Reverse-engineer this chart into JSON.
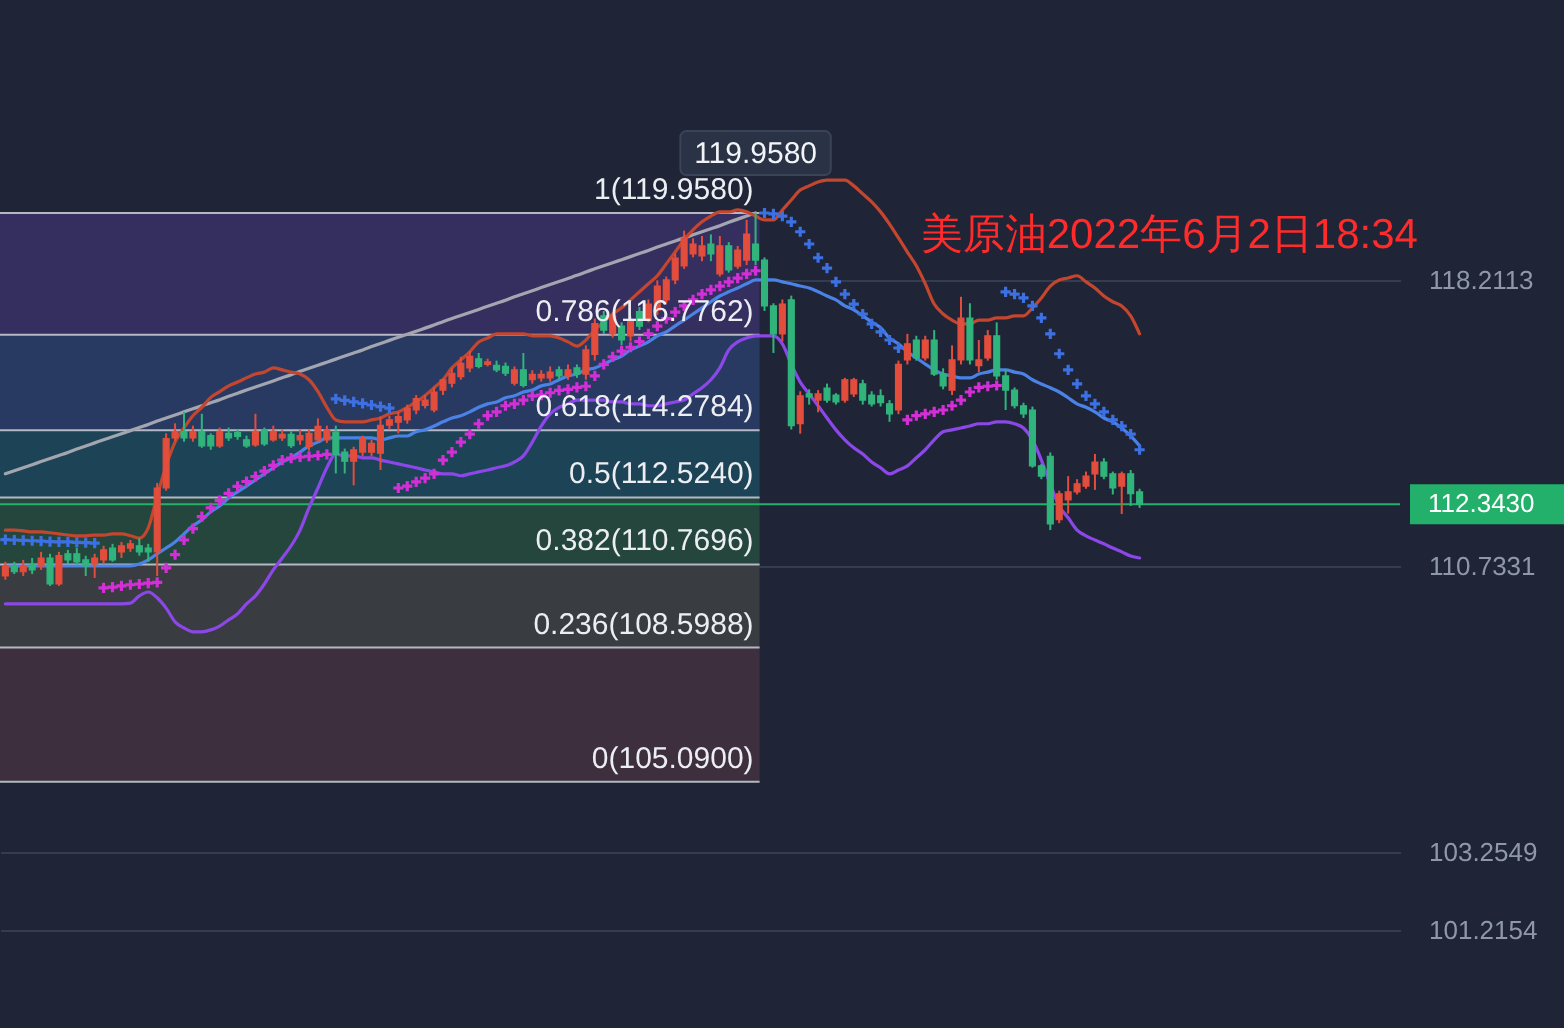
{
  "chart_data": {
    "type": "candlestick",
    "title": "美原油2022年6月2日18:34",
    "categories": [
      null,
      null,
      null,
      null,
      null,
      null,
      null,
      null,
      null,
      null,
      null,
      null,
      null,
      null,
      null,
      null,
      null,
      null,
      null,
      null,
      null,
      null,
      null,
      null,
      null,
      null,
      null,
      null,
      null,
      null,
      null,
      null,
      null,
      null,
      null,
      null,
      null,
      null,
      null,
      null,
      null,
      null,
      null,
      null,
      null,
      null,
      null,
      null,
      null,
      null,
      null,
      null,
      null,
      null,
      null,
      null,
      null,
      null,
      null,
      null,
      null,
      null,
      null,
      null,
      null,
      null,
      null,
      null,
      null,
      null,
      null,
      null,
      null,
      null,
      null,
      null,
      null,
      null,
      null,
      null,
      null,
      null,
      null,
      null,
      null,
      null,
      null,
      null,
      null,
      null,
      null,
      null,
      null,
      null,
      null,
      null,
      null,
      null,
      null,
      null,
      null,
      null,
      null,
      null,
      null,
      null,
      null,
      null,
      null,
      null,
      null,
      null,
      null,
      null,
      null,
      null,
      null,
      null,
      null,
      null,
      null,
      null,
      null,
      null,
      null,
      null,
      null,
      null
    ],
    "ylim": [
      98.65,
      125.53
    ],
    "yticks": [
      118.2113,
      110.7331,
      103.2549,
      101.2154
    ],
    "grid": "y",
    "tick_labels": "y",
    "series": [
      {
        "type": "candlestick",
        "color": "#e34d3c",
        "ohlc": [
          [
            110.47,
            110.84,
            110.37,
            110.73
          ],
          null,
          [
            110.58,
            110.89,
            110.47,
            110.73
          ],
          null,
          [
            110.73,
            111.1,
            110.63,
            110.94
          ],
          null,
          [
            110.26,
            111.1,
            110.21,
            111.0
          ],
          null,
          null,
          null,
          [
            110.78,
            111.05,
            110.42,
            110.94
          ],
          [
            110.89,
            111.26,
            110.78,
            111.15
          ],
          null,
          [
            111.1,
            111.36,
            110.94,
            111.26
          ],
          [
            111.2,
            111.41,
            111.1,
            111.31
          ],
          null,
          null,
          [
            111.1,
            112.9,
            110.47,
            112.77
          ],
          [
            112.77,
            114.2,
            112.7,
            114.06
          ],
          [
            114.08,
            114.46,
            114.0,
            114.25
          ],
          null,
          [
            114.08,
            114.4,
            113.98,
            114.25
          ],
          null,
          null,
          [
            113.87,
            114.35,
            113.82,
            114.25
          ],
          null,
          null,
          null,
          [
            113.9,
            114.71,
            113.85,
            114.25
          ],
          null,
          [
            114.03,
            114.4,
            113.98,
            114.25
          ],
          [
            114.08,
            114.3,
            114.0,
            114.17
          ],
          null,
          [
            114.03,
            114.3,
            113.9,
            114.14
          ],
          [
            113.85,
            114.3,
            113.75,
            114.2
          ],
          [
            114.03,
            114.59,
            113.98,
            114.38
          ],
          [
            114.03,
            114.4,
            113.95,
            114.29
          ],
          null,
          null,
          [
            113.47,
            113.85,
            112.84,
            113.77
          ],
          [
            113.71,
            114.14,
            113.6,
            114.06
          ],
          [
            113.71,
            114.03,
            113.6,
            113.94
          ],
          [
            113.68,
            114.64,
            113.24,
            114.41
          ],
          [
            114.41,
            114.66,
            114.3,
            114.55
          ],
          [
            114.49,
            114.76,
            114.2,
            114.64
          ],
          [
            114.55,
            114.95,
            114.45,
            114.85
          ],
          [
            114.81,
            115.2,
            114.7,
            115.11
          ],
          [
            114.93,
            115.2,
            114.85,
            115.07
          ],
          [
            114.81,
            115.4,
            114.75,
            115.28
          ],
          [
            115.33,
            115.63,
            115.2,
            115.6
          ],
          [
            115.51,
            115.9,
            115.4,
            115.77
          ],
          [
            115.68,
            116.2,
            115.6,
            116.03
          ],
          [
            115.91,
            116.35,
            115.8,
            116.21
          ],
          null,
          [
            116.0,
            116.15,
            115.95,
            116.07
          ],
          null,
          null,
          [
            115.51,
            115.95,
            115.45,
            115.86
          ],
          null,
          [
            115.6,
            115.85,
            115.5,
            115.74
          ],
          [
            115.65,
            115.85,
            115.55,
            115.74
          ],
          [
            115.65,
            115.95,
            115.55,
            115.8
          ],
          null,
          [
            115.7,
            116.0,
            115.6,
            115.86
          ],
          null,
          [
            115.75,
            116.5,
            115.6,
            116.38
          ],
          [
            116.26,
            117.2,
            116.1,
            117.07
          ],
          null,
          [
            116.8,
            117.35,
            116.7,
            117.27
          ],
          null,
          [
            116.75,
            117.25,
            116.6,
            117.16
          ],
          null,
          [
            117.16,
            117.7,
            117.1,
            117.58
          ],
          [
            117.42,
            118.2,
            117.3,
            118.05
          ],
          [
            117.69,
            118.3,
            117.6,
            118.21
          ],
          [
            118.21,
            118.9,
            118.1,
            118.78
          ],
          [
            118.58,
            119.5,
            118.5,
            119.31
          ],
          [
            118.89,
            119.3,
            118.8,
            119.15
          ],
          [
            118.84,
            119.36,
            118.7,
            119.1
          ],
          null,
          [
            118.37,
            119.36,
            118.3,
            119.1
          ],
          null,
          [
            118.57,
            119.1,
            118.5,
            118.99
          ],
          [
            118.73,
            119.78,
            118.6,
            119.41
          ],
          null,
          null,
          null,
          [
            116.8,
            117.7,
            116.6,
            117.58
          ],
          null,
          [
            114.45,
            115.3,
            114.19,
            115.18
          ],
          null,
          [
            115.07,
            115.33,
            114.75,
            115.23
          ],
          null,
          null,
          [
            115.07,
            115.65,
            115.0,
            115.6
          ],
          [
            115.23,
            115.65,
            115.15,
            115.6
          ],
          null,
          null,
          null,
          null,
          [
            114.81,
            116.1,
            114.7,
            116.0
          ],
          [
            116.12,
            116.8,
            116.0,
            116.54
          ],
          null,
          [
            116.17,
            116.75,
            116.1,
            116.64
          ],
          null,
          null,
          [
            115.33,
            116.5,
            115.2,
            116.12
          ],
          [
            116.12,
            117.77,
            116.0,
            117.21
          ],
          null,
          [
            115.97,
            116.64,
            115.8,
            116.12
          ],
          [
            116.17,
            116.9,
            116.1,
            116.75
          ],
          null,
          null,
          null,
          null,
          null,
          null,
          null,
          [
            111.94,
            112.7,
            111.85,
            112.62
          ],
          [
            112.46,
            113.08,
            112.1,
            112.67
          ],
          [
            112.67,
            113.0,
            112.6,
            112.88
          ],
          [
            112.82,
            113.2,
            112.75,
            113.08
          ],
          [
            113.14,
            113.66,
            112.72,
            113.45
          ],
          null,
          null,
          [
            112.82,
            113.2,
            112.09,
            113.14
          ],
          null,
          null
        ]
      },
      {
        "type": "candlestick",
        "color": "#30b47c",
        "ohlc": [
          null,
          [
            110.73,
            110.84,
            110.52,
            110.58
          ],
          null,
          [
            110.78,
            110.94,
            110.52,
            110.63
          ],
          null,
          [
            110.94,
            111.05,
            110.21,
            110.26
          ],
          null,
          [
            111.05,
            111.15,
            110.78,
            110.89
          ],
          [
            111.05,
            111.2,
            110.73,
            110.84
          ],
          [
            110.89,
            111.0,
            110.47,
            110.73
          ],
          null,
          null,
          [
            111.2,
            111.31,
            110.84,
            110.89
          ],
          null,
          null,
          [
            111.26,
            111.46,
            111.0,
            111.1
          ],
          [
            111.2,
            111.31,
            110.84,
            111.1
          ],
          null,
          null,
          null,
          [
            114.25,
            114.76,
            113.98,
            114.08
          ],
          null,
          [
            114.25,
            114.71,
            113.82,
            113.87
          ],
          [
            114.14,
            114.2,
            113.77,
            113.87
          ],
          null,
          [
            114.2,
            114.35,
            114.0,
            114.08
          ],
          [
            114.22,
            114.3,
            114.03,
            114.12
          ],
          [
            114.03,
            114.14,
            113.82,
            113.87
          ],
          null,
          [
            114.29,
            114.35,
            113.87,
            113.92
          ],
          null,
          null,
          [
            114.17,
            114.25,
            113.82,
            113.88
          ],
          null,
          null,
          null,
          null,
          [
            114.23,
            114.4,
            113.15,
            113.65
          ],
          [
            113.71,
            113.8,
            113.15,
            113.47
          ],
          null,
          null,
          null,
          null,
          null,
          null,
          null,
          null,
          null,
          null,
          null,
          null,
          null,
          null,
          [
            116.15,
            116.3,
            115.9,
            115.95
          ],
          null,
          [
            115.98,
            116.1,
            115.8,
            115.86
          ],
          [
            115.95,
            116.05,
            115.7,
            115.77
          ],
          null,
          [
            115.86,
            116.3,
            115.4,
            115.45
          ],
          null,
          null,
          null,
          [
            115.86,
            115.95,
            115.6,
            115.7
          ],
          null,
          [
            115.91,
            116.0,
            115.65,
            115.75
          ],
          null,
          null,
          [
            117.27,
            117.4,
            116.8,
            116.9
          ],
          null,
          [
            117.0,
            117.1,
            116.5,
            116.64
          ],
          null,
          [
            117.38,
            117.5,
            116.9,
            117.0
          ],
          null,
          null,
          null,
          null,
          null,
          null,
          null,
          [
            119.15,
            119.4,
            118.7,
            118.89
          ],
          null,
          [
            119.1,
            119.2,
            118.4,
            118.47
          ],
          null,
          null,
          [
            119.15,
            119.958,
            118.6,
            118.73
          ],
          [
            118.73,
            118.8,
            117.4,
            117.53
          ],
          [
            117.53,
            117.6,
            116.3,
            116.8
          ],
          null,
          [
            117.69,
            117.8,
            114.3,
            114.4
          ],
          null,
          [
            115.23,
            115.35,
            114.95,
            115.15
          ],
          null,
          [
            115.38,
            115.5,
            115.0,
            115.07
          ],
          [
            115.2,
            115.25,
            114.95,
            115.02
          ],
          null,
          null,
          [
            115.49,
            115.6,
            114.95,
            115.07
          ],
          [
            115.2,
            115.3,
            114.9,
            114.97
          ],
          [
            115.18,
            115.35,
            114.9,
            115.0
          ],
          [
            114.97,
            115.07,
            114.5,
            114.71
          ],
          null,
          null,
          [
            116.64,
            116.75,
            116.1,
            116.17
          ],
          null,
          [
            116.64,
            116.9,
            115.7,
            115.75
          ],
          [
            115.75,
            115.9,
            115.35,
            115.44
          ],
          null,
          null,
          [
            117.21,
            117.6,
            116.0,
            116.12
          ],
          null,
          null,
          [
            116.75,
            117.1,
            115.6,
            115.7
          ],
          [
            115.7,
            115.86,
            114.81,
            115.33
          ],
          [
            115.33,
            115.4,
            114.85,
            114.92
          ],
          [
            114.92,
            115.0,
            114.6,
            114.71
          ],
          [
            114.81,
            114.9,
            113.3,
            113.35
          ],
          [
            113.35,
            113.4,
            113.0,
            113.08
          ],
          [
            113.6,
            113.7,
            111.67,
            111.83
          ],
          null,
          null,
          null,
          null,
          null,
          [
            113.45,
            113.55,
            113.0,
            113.08
          ],
          [
            113.14,
            113.2,
            112.6,
            112.77
          ],
          null,
          [
            113.14,
            113.24,
            112.3,
            112.62
          ],
          [
            112.67,
            112.75,
            112.25,
            112.343
          ]
        ]
      },
      {
        "type": "line",
        "color": "#a3a6b0",
        "values": [
          113.14,
          113.22,
          113.3,
          113.38,
          113.46,
          113.54,
          113.62,
          113.7,
          113.79,
          113.87,
          113.95,
          114.03,
          114.11,
          114.19,
          114.27,
          114.35,
          114.43,
          114.52,
          114.6,
          114.68,
          114.76,
          114.84,
          114.92,
          115.0,
          115.08,
          115.17,
          115.25,
          115.33,
          115.41,
          115.49,
          115.57,
          115.65,
          115.73,
          115.82,
          115.9,
          115.98,
          116.06,
          116.14,
          116.22,
          116.3,
          116.38,
          116.47,
          116.55,
          116.63,
          116.71,
          116.79,
          116.87,
          116.95,
          117.03,
          117.12,
          117.2,
          117.28,
          117.36,
          117.44,
          117.52,
          117.6,
          117.68,
          117.77,
          117.85,
          117.93,
          118.01,
          118.09,
          118.17,
          118.25,
          118.33,
          118.42,
          118.5,
          118.58,
          118.66,
          118.74,
          118.82,
          118.9,
          118.98,
          119.07,
          119.15,
          119.23,
          119.31,
          119.39,
          119.47,
          119.55,
          119.63,
          119.72,
          119.8,
          119.88,
          119.96,
          null,
          null,
          null,
          null,
          null,
          null,
          null,
          null,
          null,
          null,
          null,
          null,
          null,
          null,
          null,
          null,
          null,
          null,
          null,
          null,
          null,
          null,
          null,
          null,
          null,
          null,
          null,
          null,
          null,
          null,
          null,
          null,
          null,
          null,
          null,
          null,
          null,
          null,
          null,
          null,
          null,
          null,
          null
        ]
      },
      {
        "type": "line",
        "color": "#c4462e",
        "values": [
          111.67,
          111.67,
          111.65,
          111.62,
          111.62,
          111.6,
          111.57,
          111.54,
          111.52,
          111.52,
          111.54,
          111.54,
          111.57,
          111.57,
          111.52,
          111.46,
          111.73,
          112.56,
          113.35,
          113.97,
          114.34,
          114.66,
          114.88,
          115.14,
          115.29,
          115.44,
          115.54,
          115.65,
          115.75,
          115.8,
          115.91,
          115.86,
          115.8,
          115.75,
          115.6,
          115.29,
          114.88,
          114.55,
          114.5,
          114.5,
          114.5,
          114.55,
          114.6,
          114.71,
          114.76,
          114.88,
          115.02,
          115.19,
          115.39,
          115.6,
          115.91,
          116.12,
          116.33,
          116.59,
          116.69,
          116.8,
          116.8,
          116.8,
          116.8,
          116.75,
          116.75,
          116.75,
          116.69,
          116.59,
          116.48,
          116.64,
          116.9,
          117.11,
          117.32,
          117.48,
          117.69,
          117.9,
          118.11,
          118.32,
          118.63,
          118.94,
          119.26,
          119.52,
          119.73,
          119.88,
          119.99,
          119.99,
          120.04,
          119.99,
          119.88,
          119.78,
          119.78,
          120.04,
          120.3,
          120.56,
          120.67,
          120.77,
          120.82,
          120.82,
          120.82,
          120.67,
          120.46,
          120.25,
          119.99,
          119.67,
          119.31,
          118.94,
          118.58,
          118.11,
          117.58,
          117.32,
          117.16,
          117.06,
          117.06,
          117.16,
          117.16,
          117.22,
          117.22,
          117.27,
          117.27,
          117.48,
          117.74,
          118.05,
          118.21,
          118.26,
          118.32,
          118.16,
          118.0,
          117.79,
          117.64,
          117.53,
          117.27,
          116.8
        ]
      },
      {
        "type": "line",
        "color": "#4a82e6",
        "values": [
          110.73,
          110.73,
          110.73,
          110.73,
          110.73,
          110.73,
          110.73,
          110.73,
          110.73,
          110.73,
          110.73,
          110.73,
          110.73,
          110.73,
          110.73,
          110.78,
          110.89,
          111.05,
          111.2,
          111.36,
          111.57,
          111.78,
          111.94,
          112.15,
          112.3,
          112.51,
          112.67,
          112.82,
          112.98,
          113.14,
          113.3,
          113.45,
          113.56,
          113.71,
          113.87,
          113.97,
          114.08,
          114.08,
          114.08,
          114.08,
          114.08,
          114.08,
          114.03,
          114.08,
          114.13,
          114.13,
          114.24,
          114.29,
          114.39,
          114.5,
          114.6,
          114.66,
          114.76,
          114.88,
          114.97,
          115.02,
          115.13,
          115.18,
          115.28,
          115.33,
          115.44,
          115.49,
          115.6,
          115.7,
          115.75,
          115.86,
          115.91,
          116.01,
          116.12,
          116.22,
          116.38,
          116.48,
          116.59,
          116.75,
          116.85,
          117.01,
          117.16,
          117.32,
          117.48,
          117.64,
          117.79,
          117.9,
          118.0,
          118.11,
          118.21,
          118.21,
          118.21,
          118.16,
          118.11,
          118.05,
          118.0,
          117.9,
          117.79,
          117.69,
          117.53,
          117.43,
          117.27,
          117.11,
          116.96,
          116.69,
          116.54,
          116.33,
          116.17,
          116.01,
          115.86,
          115.75,
          115.7,
          115.65,
          115.65,
          115.75,
          115.8,
          115.86,
          115.86,
          115.8,
          115.75,
          115.6,
          115.49,
          115.39,
          115.28,
          115.13,
          114.97,
          114.88,
          114.76,
          114.6,
          114.5,
          114.34,
          114.13,
          113.87
        ]
      },
      {
        "type": "line",
        "color": "#8c47e8",
        "values": [
          109.74,
          109.74,
          109.74,
          109.74,
          109.74,
          109.74,
          109.74,
          109.74,
          109.74,
          109.74,
          109.74,
          109.74,
          109.74,
          109.74,
          109.76,
          109.95,
          110.05,
          109.9,
          109.63,
          109.27,
          109.11,
          109.01,
          109.01,
          109.06,
          109.16,
          109.32,
          109.48,
          109.74,
          109.95,
          110.26,
          110.63,
          110.94,
          111.26,
          111.67,
          112.25,
          112.77,
          113.3,
          113.66,
          113.61,
          113.61,
          113.56,
          113.56,
          113.5,
          113.45,
          113.4,
          113.35,
          113.3,
          113.24,
          113.19,
          113.14,
          113.14,
          113.09,
          113.14,
          113.19,
          113.24,
          113.3,
          113.35,
          113.45,
          113.61,
          113.97,
          114.39,
          114.71,
          114.88,
          114.97,
          115.07,
          115.07,
          115.07,
          115.07,
          115.02,
          115.02,
          114.97,
          114.97,
          114.92,
          114.92,
          114.97,
          115.02,
          115.07,
          115.23,
          115.39,
          115.6,
          115.91,
          116.38,
          116.59,
          116.69,
          116.75,
          116.75,
          116.75,
          116.54,
          116.01,
          115.54,
          115.23,
          114.92,
          114.6,
          114.29,
          114.03,
          113.82,
          113.66,
          113.45,
          113.3,
          113.14,
          113.24,
          113.35,
          113.56,
          113.77,
          114.03,
          114.24,
          114.29,
          114.34,
          114.39,
          114.45,
          114.45,
          114.5,
          114.5,
          114.45,
          114.34,
          114.03,
          113.5,
          112.87,
          112.3,
          111.99,
          111.67,
          111.52,
          111.41,
          111.31,
          111.2,
          111.1,
          110.99,
          110.94
        ]
      },
      {
        "type": "scatter",
        "color": "#d22fd6",
        "marker": "cross",
        "values": [
          null,
          null,
          null,
          null,
          null,
          null,
          null,
          null,
          null,
          null,
          null,
          110.16,
          110.18,
          110.21,
          110.24,
          110.26,
          110.28,
          110.3,
          110.68,
          111.03,
          111.41,
          111.71,
          112.02,
          112.25,
          112.44,
          112.63,
          112.81,
          112.94,
          113.07,
          113.21,
          113.36,
          113.5,
          113.55,
          113.58,
          113.6,
          113.62,
          113.65,
          null,
          null,
          null,
          null,
          null,
          null,
          null,
          112.77,
          112.82,
          112.93,
          113.03,
          113.14,
          113.5,
          113.71,
          113.97,
          114.18,
          114.45,
          114.66,
          114.76,
          114.92,
          114.97,
          115.07,
          115.18,
          115.2,
          115.26,
          115.32,
          115.35,
          115.4,
          115.43,
          115.7,
          116.0,
          116.2,
          116.35,
          116.45,
          116.6,
          116.8,
          117.0,
          117.2,
          117.37,
          117.53,
          117.69,
          117.84,
          117.95,
          118.05,
          118.16,
          118.26,
          118.37,
          118.45,
          null,
          null,
          null,
          null,
          null,
          null,
          null,
          null,
          null,
          null,
          null,
          null,
          null,
          null,
          null,
          null,
          114.55,
          114.66,
          114.71,
          114.76,
          114.81,
          114.92,
          115.07,
          115.28,
          115.4,
          115.43,
          115.45,
          null,
          null,
          null,
          null,
          null,
          null,
          null,
          null,
          null,
          null,
          null,
          null,
          null,
          null,
          null,
          null
        ]
      },
      {
        "type": "scatter",
        "color": "#3d70e2",
        "marker": "cross",
        "values": [
          111.42,
          111.41,
          111.4,
          111.39,
          111.38,
          111.37,
          111.36,
          111.36,
          111.35,
          111.34,
          111.33,
          null,
          null,
          null,
          null,
          null,
          null,
          null,
          null,
          null,
          null,
          null,
          null,
          null,
          null,
          null,
          null,
          null,
          null,
          null,
          null,
          null,
          null,
          null,
          null,
          null,
          null,
          115.1,
          115.06,
          115.02,
          114.98,
          114.94,
          114.9,
          114.86,
          null,
          null,
          null,
          null,
          null,
          null,
          null,
          null,
          null,
          null,
          null,
          null,
          null,
          null,
          null,
          null,
          null,
          null,
          null,
          null,
          null,
          null,
          null,
          null,
          null,
          null,
          null,
          null,
          null,
          null,
          null,
          null,
          null,
          null,
          null,
          null,
          null,
          null,
          null,
          null,
          null,
          119.96,
          119.94,
          119.88,
          119.73,
          119.47,
          119.15,
          118.79,
          118.52,
          118.16,
          117.84,
          117.58,
          117.32,
          117.06,
          116.85,
          116.64,
          116.43,
          null,
          null,
          null,
          null,
          null,
          null,
          null,
          null,
          null,
          null,
          null,
          117.9,
          117.84,
          117.74,
          117.53,
          117.22,
          116.8,
          116.28,
          115.86,
          115.49,
          115.18,
          114.97,
          114.76,
          114.55,
          114.39,
          114.18,
          113.77
        ]
      }
    ],
    "ref_lines": [
      {
        "axis": "y",
        "value": 119.958,
        "label": "1(119.9580)",
        "color": "#b4b8c4"
      },
      {
        "axis": "y",
        "value": 116.7762,
        "label": "0.786(116.7762)",
        "color": "#b4b8c4"
      },
      {
        "axis": "y",
        "value": 114.2784,
        "label": "0.618(114.2784)",
        "color": "#b4b8c4"
      },
      {
        "axis": "y",
        "value": 112.524,
        "label": "0.5(112.5240)",
        "color": "#b4b8c4"
      },
      {
        "axis": "y",
        "value": 110.7696,
        "label": "0.382(110.7696)",
        "color": "#b4b8c4"
      },
      {
        "axis": "y",
        "value": 108.5988,
        "label": "0.236(108.5988)",
        "color": "#b4b8c4"
      },
      {
        "axis": "y",
        "value": 105.09,
        "label": "0(105.0900)",
        "color": "#b4b8c4"
      },
      {
        "axis": "y",
        "value": 112.343,
        "label": "112.3430",
        "color": "#22b06b"
      }
    ],
    "bands": [
      {
        "axis": "y",
        "from": 116.7762,
        "to": 119.958,
        "color": "#352f5f"
      },
      {
        "axis": "y",
        "from": 114.2784,
        "to": 116.7762,
        "color": "#283a62"
      },
      {
        "axis": "y",
        "from": 112.524,
        "to": 114.2784,
        "color": "#1d4456"
      },
      {
        "axis": "y",
        "from": 110.7696,
        "to": 112.524,
        "color": "#24463d"
      },
      {
        "axis": "y",
        "from": 108.5988,
        "to": 110.7696,
        "color": "#393c41"
      },
      {
        "axis": "y",
        "from": 105.09,
        "to": 108.5988,
        "color": "#3d2f3e"
      }
    ],
    "annotations": [
      {
        "text": "119.9580",
        "y": 119.958
      }
    ]
  }
}
